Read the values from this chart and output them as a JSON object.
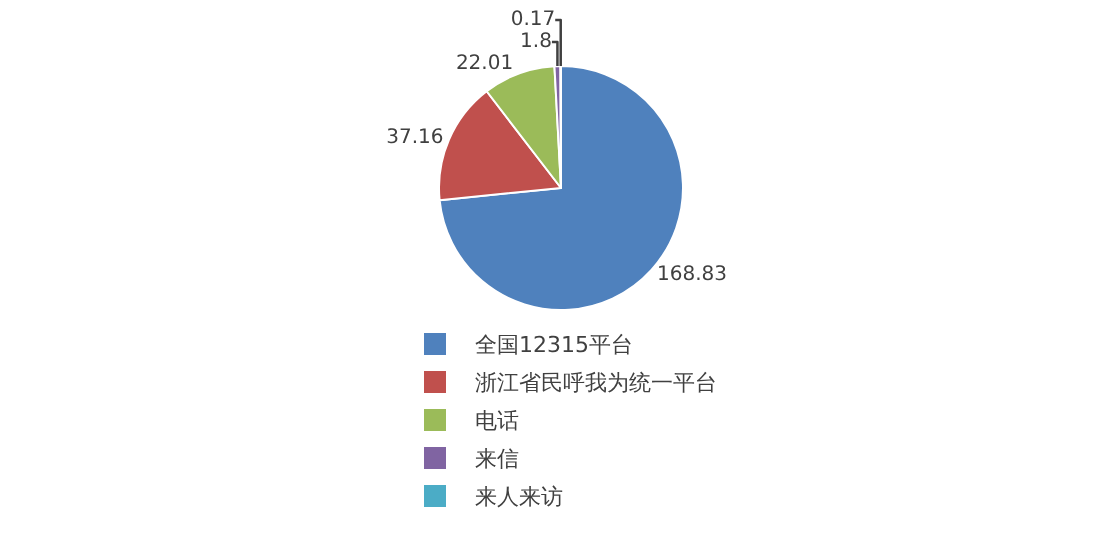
{
  "chart_data": {
    "type": "pie",
    "categories": [
      "全国12315平台",
      "浙江省民呼我为统一平台",
      "电话",
      "来信",
      "来人来访"
    ],
    "values": [
      168.83,
      37.16,
      22.01,
      1.8,
      0.17
    ],
    "colors": [
      "#4f81bd",
      "#c0504d",
      "#9bbb59",
      "#8064a2",
      "#4bacc6"
    ],
    "data_labels": true,
    "legend": "bottom"
  }
}
